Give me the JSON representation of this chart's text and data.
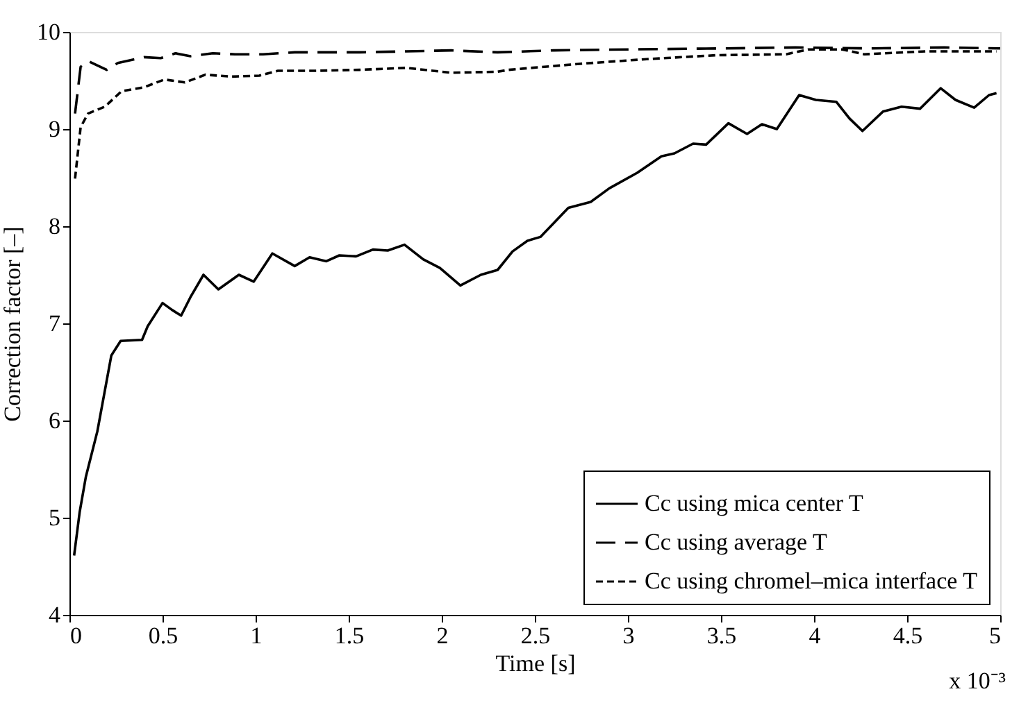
{
  "chart_data": {
    "type": "line",
    "xlabel": "Time [s]",
    "ylabel": "Correction factor [–]",
    "xlim": [
      0,
      5
    ],
    "xticks": [
      0,
      0.5,
      1,
      1.5,
      2,
      2.5,
      3,
      3.5,
      4,
      4.5,
      5
    ],
    "ylim": [
      4,
      10
    ],
    "yticks": [
      4,
      5,
      6,
      7,
      8,
      9,
      10
    ],
    "annotations": [
      "x 10⁻³"
    ],
    "grid": false,
    "legend": "bottom right",
    "series": [
      {
        "name": "Cc using mica center T",
        "color": "#000000",
        "line_style": "solid",
        "x": [
          0.025,
          0.055,
          0.088,
          0.15,
          0.225,
          0.275,
          0.39,
          0.42,
          0.5,
          0.55,
          0.6,
          0.65,
          0.72,
          0.8,
          0.91,
          0.99,
          1.09,
          1.21,
          1.29,
          1.38,
          1.45,
          1.54,
          1.63,
          1.71,
          1.8,
          1.9,
          1.99,
          2.1,
          2.21,
          2.3,
          2.38,
          2.46,
          2.53,
          2.68,
          2.8,
          2.9,
          3.05,
          3.18,
          3.25,
          3.35,
          3.42,
          3.54,
          3.64,
          3.72,
          3.8,
          3.92,
          4.01,
          4.12,
          4.19,
          4.26,
          4.37,
          4.47,
          4.57,
          4.68,
          4.76,
          4.86,
          4.94,
          4.98
        ],
        "values": [
          4.61,
          5.06,
          5.42,
          5.89,
          6.67,
          6.82,
          6.83,
          6.97,
          7.21,
          7.14,
          7.08,
          7.27,
          7.5,
          7.35,
          7.5,
          7.43,
          7.72,
          7.59,
          7.68,
          7.64,
          7.7,
          7.69,
          7.76,
          7.75,
          7.81,
          7.66,
          7.57,
          7.39,
          7.5,
          7.55,
          7.74,
          7.85,
          7.89,
          8.19,
          8.25,
          8.39,
          8.55,
          8.72,
          8.75,
          8.85,
          8.84,
          9.06,
          8.95,
          9.05,
          9.0,
          9.35,
          9.3,
          9.28,
          9.11,
          8.98,
          9.18,
          9.23,
          9.21,
          9.42,
          9.3,
          9.22,
          9.35,
          9.37
        ]
      },
      {
        "name": "Cc using average T",
        "color": "#000000",
        "line_style": "dashed",
        "x": [
          0.03,
          0.06,
          0.1,
          0.2,
          0.26,
          0.4,
          0.49,
          0.57,
          0.65,
          0.77,
          0.89,
          1.04,
          1.21,
          1.56,
          1.81,
          2.05,
          2.3,
          2.6,
          3.0,
          3.5,
          3.9,
          4.3,
          4.7,
          5.0
        ],
        "values": [
          9.16,
          9.64,
          9.7,
          9.61,
          9.68,
          9.74,
          9.73,
          9.78,
          9.75,
          9.78,
          9.77,
          9.77,
          9.79,
          9.79,
          9.8,
          9.81,
          9.79,
          9.81,
          9.82,
          9.83,
          9.84,
          9.83,
          9.84,
          9.83
        ]
      },
      {
        "name": "Cc using chromel–mica interface T",
        "color": "#000000",
        "line_style": "dotted",
        "x": [
          0.03,
          0.06,
          0.1,
          0.19,
          0.28,
          0.4,
          0.51,
          0.62,
          0.73,
          0.87,
          1.02,
          1.12,
          1.32,
          1.56,
          1.81,
          2.05,
          2.3,
          2.36,
          2.73,
          3.1,
          3.47,
          3.85,
          3.97,
          4.15,
          4.27,
          4.6,
          4.98
        ],
        "values": [
          8.49,
          9.02,
          9.16,
          9.23,
          9.39,
          9.43,
          9.51,
          9.48,
          9.56,
          9.54,
          9.55,
          9.6,
          9.6,
          9.61,
          9.63,
          9.58,
          9.59,
          9.61,
          9.67,
          9.72,
          9.76,
          9.77,
          9.82,
          9.82,
          9.77,
          9.8,
          9.8
        ]
      }
    ]
  }
}
